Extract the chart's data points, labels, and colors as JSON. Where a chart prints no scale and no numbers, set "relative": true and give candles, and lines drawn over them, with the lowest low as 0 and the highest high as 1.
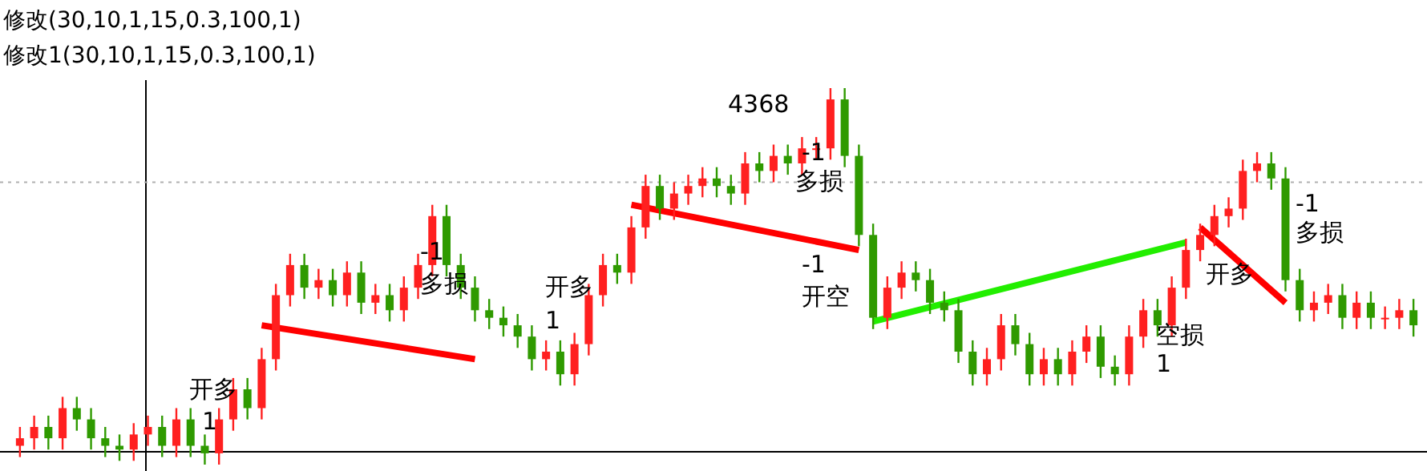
{
  "chart_data": {
    "type": "candlestick",
    "relative": true,
    "title": "修改(30,10,1,15,0.3,100,1)",
    "subtitle": "修改1(30,10,1,15,0.3,100,1)",
    "categories": [
      null,
      null,
      null,
      null,
      null,
      null,
      null,
      null,
      null,
      null,
      null,
      null,
      null,
      null,
      null,
      null,
      null,
      null,
      null,
      null,
      null,
      null,
      null,
      null,
      null,
      null,
      null,
      null,
      null,
      null,
      null,
      null,
      null,
      null,
      null,
      null,
      null,
      null,
      null,
      null,
      null,
      null,
      null,
      null,
      null,
      null,
      null,
      null,
      null,
      null,
      null,
      null,
      null,
      null,
      null,
      null,
      null,
      null,
      null,
      null,
      null,
      null,
      null,
      null,
      null,
      null,
      null,
      null,
      null,
      null,
      null,
      null,
      null,
      null,
      null,
      null,
      null,
      null,
      null,
      null,
      null,
      null,
      null,
      null,
      null,
      null,
      null,
      null,
      null,
      null,
      null,
      null,
      null,
      null,
      null,
      null,
      null,
      null,
      null
    ],
    "colors": [
      "#ff2020",
      "#ff2020",
      "#2f9a00",
      "#ff2020",
      "#2f9a00",
      "#2f9a00",
      "#2f9a00",
      "#2f9a00",
      "#ff2020",
      "#ff2020",
      "#2f9a00",
      "#ff2020",
      "#2f9a00",
      "#2f9a00",
      "#ff2020",
      "#ff2020",
      "#2f9a00",
      "#ff2020",
      "#ff2020",
      "#ff2020",
      "#2f9a00",
      "#ff2020",
      "#2f9a00",
      "#ff2020",
      "#2f9a00",
      "#ff2020",
      "#2f9a00",
      "#ff2020",
      "#ff2020",
      "#ff2020",
      "#2f9a00",
      "#2f9a00",
      "#2f9a00",
      "#2f9a00",
      "#2f9a00",
      "#2f9a00",
      "#2f9a00",
      "#ff2020",
      "#2f9a00",
      "#ff2020",
      "#ff2020",
      "#ff2020",
      "#2f9a00",
      "#ff2020",
      "#ff2020",
      "#2f9a00",
      "#ff2020",
      "#ff2020",
      "#ff2020",
      "#2f9a00",
      "#2f9a00",
      "#ff2020",
      "#2f9a00",
      "#ff2020",
      "#2f9a00",
      "#ff2020",
      "#ff2020",
      "#ff2020",
      "#2f9a00",
      "#2f9a00",
      "#2f9a00",
      "#ff2020",
      "#ff2020",
      "#2f9a00",
      "#2f9a00",
      "#2f9a00",
      "#2f9a00",
      "#2f9a00",
      "#ff2020",
      "#ff2020",
      "#2f9a00",
      "#2f9a00",
      "#ff2020",
      "#2f9a00",
      "#ff2020",
      "#ff2020",
      "#2f9a00",
      "#2f9a00",
      "#ff2020",
      "#ff2020",
      "#2f9a00",
      "#ff2020",
      "#ff2020",
      "#ff2020",
      "#ff2020",
      "#ff2020",
      "#ff2020",
      "#ff2020",
      "#2f9a00",
      "#2f9a00",
      "#2f9a00",
      "#ff2020",
      "#ff2020",
      "#2f9a00",
      "#ff2020",
      "#2f9a00",
      "#ff2020",
      "#ff2020",
      "#2f9a00"
    ],
    "ohlc": [
      [
        0.05,
        0.1,
        0.02,
        0.07
      ],
      [
        0.07,
        0.13,
        0.04,
        0.1
      ],
      [
        0.1,
        0.13,
        0.04,
        0.07
      ],
      [
        0.07,
        0.18,
        0.04,
        0.15
      ],
      [
        0.15,
        0.18,
        0.09,
        0.12
      ],
      [
        0.12,
        0.15,
        0.04,
        0.07
      ],
      [
        0.07,
        0.1,
        0.02,
        0.05
      ],
      [
        0.05,
        0.08,
        0.01,
        0.04
      ],
      [
        0.04,
        0.11,
        0.01,
        0.08
      ],
      [
        0.08,
        0.13,
        0.05,
        0.1
      ],
      [
        0.1,
        0.13,
        0.02,
        0.05
      ],
      [
        0.05,
        0.15,
        0.02,
        0.12
      ],
      [
        0.12,
        0.15,
        0.02,
        0.05
      ],
      [
        0.05,
        0.08,
        0.0,
        0.03
      ],
      [
        0.03,
        0.15,
        0.0,
        0.12
      ],
      [
        0.12,
        0.23,
        0.09,
        0.2
      ],
      [
        0.2,
        0.23,
        0.12,
        0.15
      ],
      [
        0.15,
        0.31,
        0.12,
        0.28
      ],
      [
        0.28,
        0.48,
        0.25,
        0.45
      ],
      [
        0.45,
        0.56,
        0.42,
        0.53
      ],
      [
        0.53,
        0.56,
        0.44,
        0.47
      ],
      [
        0.47,
        0.52,
        0.44,
        0.49
      ],
      [
        0.49,
        0.52,
        0.42,
        0.45
      ],
      [
        0.45,
        0.54,
        0.42,
        0.51
      ],
      [
        0.51,
        0.54,
        0.4,
        0.43
      ],
      [
        0.43,
        0.48,
        0.4,
        0.45
      ],
      [
        0.45,
        0.48,
        0.38,
        0.41
      ],
      [
        0.41,
        0.5,
        0.38,
        0.47
      ],
      [
        0.47,
        0.56,
        0.44,
        0.53
      ],
      [
        0.53,
        0.69,
        0.5,
        0.66
      ],
      [
        0.66,
        0.69,
        0.5,
        0.53
      ],
      [
        0.53,
        0.56,
        0.44,
        0.47
      ],
      [
        0.47,
        0.5,
        0.38,
        0.41
      ],
      [
        0.41,
        0.44,
        0.36,
        0.39
      ],
      [
        0.39,
        0.42,
        0.34,
        0.37
      ],
      [
        0.37,
        0.4,
        0.31,
        0.34
      ],
      [
        0.34,
        0.37,
        0.25,
        0.28
      ],
      [
        0.28,
        0.33,
        0.25,
        0.3
      ],
      [
        0.3,
        0.33,
        0.21,
        0.24
      ],
      [
        0.24,
        0.35,
        0.21,
        0.32
      ],
      [
        0.32,
        0.48,
        0.29,
        0.45
      ],
      [
        0.45,
        0.56,
        0.42,
        0.53
      ],
      [
        0.53,
        0.56,
        0.48,
        0.51
      ],
      [
        0.51,
        0.66,
        0.48,
        0.63
      ],
      [
        0.63,
        0.77,
        0.6,
        0.74
      ],
      [
        0.74,
        0.77,
        0.65,
        0.68
      ],
      [
        0.68,
        0.75,
        0.65,
        0.72
      ],
      [
        0.72,
        0.77,
        0.69,
        0.74
      ],
      [
        0.74,
        0.79,
        0.71,
        0.76
      ],
      [
        0.76,
        0.79,
        0.71,
        0.74
      ],
      [
        0.74,
        0.77,
        0.69,
        0.72
      ],
      [
        0.72,
        0.83,
        0.69,
        0.8
      ],
      [
        0.8,
        0.83,
        0.75,
        0.78
      ],
      [
        0.78,
        0.85,
        0.75,
        0.82
      ],
      [
        0.82,
        0.85,
        0.77,
        0.8
      ],
      [
        0.8,
        0.87,
        0.77,
        0.84
      ],
      [
        0.84,
        0.87,
        0.81,
        0.84
      ],
      [
        0.84,
        1.0,
        0.81,
        0.97
      ],
      [
        0.97,
        1.0,
        0.79,
        0.82
      ],
      [
        0.82,
        0.85,
        0.58,
        0.61
      ],
      [
        0.61,
        0.64,
        0.36,
        0.39
      ],
      [
        0.39,
        0.5,
        0.36,
        0.47
      ],
      [
        0.47,
        0.54,
        0.44,
        0.51
      ],
      [
        0.51,
        0.54,
        0.46,
        0.49
      ],
      [
        0.49,
        0.52,
        0.4,
        0.43
      ],
      [
        0.43,
        0.46,
        0.38,
        0.41
      ],
      [
        0.41,
        0.44,
        0.27,
        0.3
      ],
      [
        0.3,
        0.33,
        0.21,
        0.24
      ],
      [
        0.24,
        0.31,
        0.21,
        0.28
      ],
      [
        0.28,
        0.4,
        0.25,
        0.37
      ],
      [
        0.37,
        0.4,
        0.29,
        0.32
      ],
      [
        0.32,
        0.35,
        0.21,
        0.24
      ],
      [
        0.24,
        0.31,
        0.21,
        0.28
      ],
      [
        0.28,
        0.31,
        0.21,
        0.24
      ],
      [
        0.24,
        0.33,
        0.21,
        0.3
      ],
      [
        0.3,
        0.37,
        0.27,
        0.34
      ],
      [
        0.34,
        0.37,
        0.23,
        0.26
      ],
      [
        0.26,
        0.29,
        0.21,
        0.24
      ],
      [
        0.24,
        0.37,
        0.21,
        0.34
      ],
      [
        0.34,
        0.44,
        0.31,
        0.41
      ],
      [
        0.41,
        0.44,
        0.34,
        0.37
      ],
      [
        0.37,
        0.5,
        0.34,
        0.47
      ],
      [
        0.47,
        0.6,
        0.44,
        0.57
      ],
      [
        0.57,
        0.64,
        0.54,
        0.61
      ],
      [
        0.61,
        0.69,
        0.58,
        0.66
      ],
      [
        0.66,
        0.71,
        0.63,
        0.68
      ],
      [
        0.68,
        0.81,
        0.65,
        0.78
      ],
      [
        0.78,
        0.83,
        0.75,
        0.8
      ],
      [
        0.8,
        0.83,
        0.73,
        0.76
      ],
      [
        0.76,
        0.79,
        0.46,
        0.49
      ],
      [
        0.49,
        0.52,
        0.38,
        0.41
      ],
      [
        0.41,
        0.46,
        0.38,
        0.43
      ],
      [
        0.43,
        0.48,
        0.4,
        0.45
      ],
      [
        0.45,
        0.48,
        0.36,
        0.39
      ],
      [
        0.39,
        0.46,
        0.36,
        0.43
      ],
      [
        0.43,
        0.46,
        0.36,
        0.39
      ],
      [
        0.39,
        0.42,
        0.36,
        0.39
      ],
      [
        0.39,
        0.44,
        0.36,
        0.41
      ],
      [
        0.41,
        0.44,
        0.34,
        0.37
      ]
    ],
    "series": [
      {
        "type": "line",
        "color": "#ff0000",
        "values": [
          null,
          null,
          null,
          null,
          null,
          null,
          null,
          null,
          null,
          null,
          null,
          null,
          null,
          null,
          null,
          null,
          null,
          0.37,
          null,
          null,
          null,
          null,
          null,
          null,
          null,
          null,
          null,
          null,
          null,
          null,
          null,
          null,
          0.28,
          null,
          null,
          null,
          null,
          null,
          null,
          null,
          null,
          null,
          null,
          null,
          null,
          null,
          null,
          null,
          null,
          null,
          null,
          null,
          null,
          null,
          null,
          null,
          null,
          null,
          null,
          null,
          null,
          null,
          null,
          null,
          null,
          null,
          null,
          null,
          null,
          null,
          null,
          null,
          null,
          null,
          null,
          null,
          null,
          null,
          null,
          null,
          null,
          null,
          null,
          null,
          null,
          null,
          null,
          null,
          null,
          null,
          null,
          null,
          null,
          null,
          null,
          null,
          null,
          null,
          null
        ]
      },
      {
        "type": "line",
        "color": "#ff0000",
        "values": [
          null,
          null,
          null,
          null,
          null,
          null,
          null,
          null,
          null,
          null,
          null,
          null,
          null,
          null,
          null,
          null,
          null,
          null,
          null,
          null,
          null,
          null,
          null,
          null,
          null,
          null,
          null,
          null,
          null,
          null,
          null,
          null,
          null,
          null,
          null,
          null,
          null,
          null,
          null,
          null,
          null,
          null,
          null,
          0.69,
          null,
          null,
          null,
          null,
          null,
          null,
          null,
          null,
          null,
          null,
          null,
          null,
          null,
          null,
          null,
          0.57,
          null,
          null,
          null,
          null,
          null,
          null,
          null,
          null,
          null,
          null,
          null,
          null,
          null,
          null,
          null,
          null,
          null,
          null,
          null,
          null,
          null,
          null,
          null,
          null,
          null,
          null,
          null,
          null,
          null,
          null,
          null,
          null,
          null,
          null,
          null,
          null,
          null,
          null,
          null
        ]
      },
      {
        "type": "line",
        "color": "#22ee00",
        "values": [
          null,
          null,
          null,
          null,
          null,
          null,
          null,
          null,
          null,
          null,
          null,
          null,
          null,
          null,
          null,
          null,
          null,
          null,
          null,
          null,
          null,
          null,
          null,
          null,
          null,
          null,
          null,
          null,
          null,
          null,
          null,
          null,
          null,
          null,
          null,
          null,
          null,
          null,
          null,
          null,
          null,
          null,
          null,
          null,
          null,
          null,
          null,
          null,
          null,
          null,
          null,
          null,
          null,
          null,
          null,
          null,
          null,
          null,
          null,
          null,
          0.38,
          null,
          null,
          null,
          null,
          null,
          null,
          null,
          null,
          null,
          null,
          null,
          null,
          null,
          null,
          null,
          null,
          null,
          null,
          null,
          null,
          null,
          0.59,
          null,
          null,
          null,
          null,
          null,
          null,
          null,
          null,
          null,
          null,
          null,
          null,
          null,
          null,
          null,
          null
        ]
      },
      {
        "type": "line",
        "color": "#ff0000",
        "values": [
          null,
          null,
          null,
          null,
          null,
          null,
          null,
          null,
          null,
          null,
          null,
          null,
          null,
          null,
          null,
          null,
          null,
          null,
          null,
          null,
          null,
          null,
          null,
          null,
          null,
          null,
          null,
          null,
          null,
          null,
          null,
          null,
          null,
          null,
          null,
          null,
          null,
          null,
          null,
          null,
          null,
          null,
          null,
          null,
          null,
          null,
          null,
          null,
          null,
          null,
          null,
          null,
          null,
          null,
          null,
          null,
          null,
          null,
          null,
          null,
          null,
          null,
          null,
          null,
          null,
          null,
          null,
          null,
          null,
          null,
          null,
          null,
          null,
          null,
          null,
          null,
          null,
          null,
          null,
          null,
          null,
          null,
          null,
          0.63,
          null,
          null,
          null,
          null,
          null,
          0.43,
          null,
          null,
          null,
          null,
          null,
          null,
          null,
          null,
          null
        ]
      }
    ],
    "ref_lines": [
      {
        "axis": "y",
        "value": 0.75,
        "color": "#b0b0b0",
        "line_style": "dotted"
      }
    ],
    "annotations": [
      "开多",
      "1",
      "-1",
      "多损",
      "开多",
      "1",
      "4368",
      "-1",
      "多损",
      "-1",
      "开空",
      "开多",
      "空损",
      "1",
      "-1",
      "多损"
    ]
  }
}
